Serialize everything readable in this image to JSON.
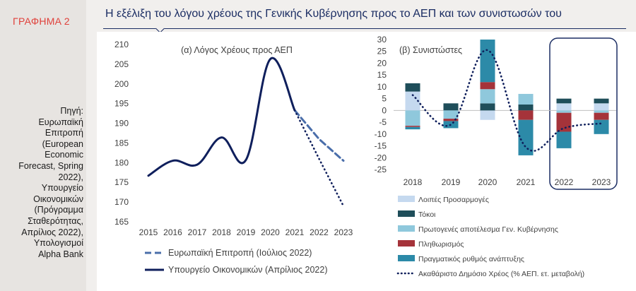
{
  "label": "ΓΡΑΦΗΜΑ 2",
  "title": "Η εξέλιξη του λόγου χρέους της Γενικής Κυβέρνησης προς το ΑΕΠ και των συνιστωσών του",
  "source": "Πηγή:\nΕυρωπαϊκή\nΕπιτροπή\n(European\nEconomic\nForecast, Spring\n2022),\nΥπουργείο\nΟικονομικών\n(Πρόγραμμα\nΣταθερότητας,\nΑπρίλιος 2022),\nΥπολογισμοί\nAlpha Bank",
  "chart_data": [
    {
      "type": "line",
      "title": "(α) Λόγος Χρέους προς ΑΕΠ",
      "x": [
        "2015",
        "2016",
        "2017",
        "2018",
        "2019",
        "2020",
        "2021",
        "2022",
        "2023"
      ],
      "ylim": [
        165,
        210
      ],
      "yticks": [
        165,
        170,
        175,
        180,
        185,
        190,
        195,
        200,
        205,
        210
      ],
      "series": [
        {
          "name": "Ευρωπαϊκή Επιτροπή (Ιούλιος 2022)",
          "color": "#4a6eaa",
          "style": "dashed",
          "values": [
            null,
            null,
            null,
            null,
            null,
            null,
            193.3,
            186.0,
            180.5
          ]
        },
        {
          "name": "Υπουργείο Οικονομικών (Απρίλιος 2022)",
          "color": "#0f1f5c",
          "style": "solid",
          "values": [
            176.7,
            180.5,
            179.5,
            186.4,
            180.7,
            206.3,
            193.3,
            null,
            null
          ]
        },
        {
          "name": "",
          "color": "#0f1f5c",
          "style": "dotted",
          "values": [
            null,
            null,
            null,
            null,
            null,
            null,
            193.3,
            181.0,
            169.0
          ]
        }
      ]
    },
    {
      "type": "bar",
      "stacked": true,
      "title": "(β) Συνιστώστες",
      "categories": [
        "2018",
        "2019",
        "2020",
        "2021",
        "2022",
        "2023"
      ],
      "ylim": [
        -25,
        30
      ],
      "yticks": [
        -25,
        -20,
        -15,
        -10,
        -5,
        0,
        5,
        10,
        15,
        20,
        25,
        30
      ],
      "highlight": [
        "2022",
        "2023"
      ],
      "series": [
        {
          "name": "Λοιπές Προσαρμογές",
          "color": "#c5d9ef",
          "values": [
            8,
            0,
            -4,
            0,
            3,
            3
          ]
        },
        {
          "name": "Τόκοι",
          "color": "#1f4e5a",
          "values": [
            3.5,
            3,
            3,
            2.5,
            2,
            2
          ]
        },
        {
          "name": "Πρωτογενές αποτέλεσμα Γεν. Κυβέρνησης",
          "color": "#8fc8dc",
          "values": [
            -6.5,
            -3.5,
            6,
            4.5,
            -1,
            -1
          ]
        },
        {
          "name": "Πληθωρισμός",
          "color": "#a5333a",
          "values": [
            -0.5,
            -1,
            3,
            -4,
            -8,
            -3
          ]
        },
        {
          "name": "Πραγματικός ρυθμός ανάπτυξης",
          "color": "#2c8aa8",
          "values": [
            -1,
            -3,
            18,
            -15,
            -7,
            -6
          ]
        }
      ],
      "line": {
        "name": "Ακαθάριστο Δημόσιο Χρέος (% ΑΕΠ. ετ. μεταβολή)",
        "color": "#0f1f5c",
        "style": "dotted",
        "values": [
          6.5,
          -6,
          25.5,
          -15.5,
          -7.5,
          -5.5
        ]
      }
    }
  ]
}
